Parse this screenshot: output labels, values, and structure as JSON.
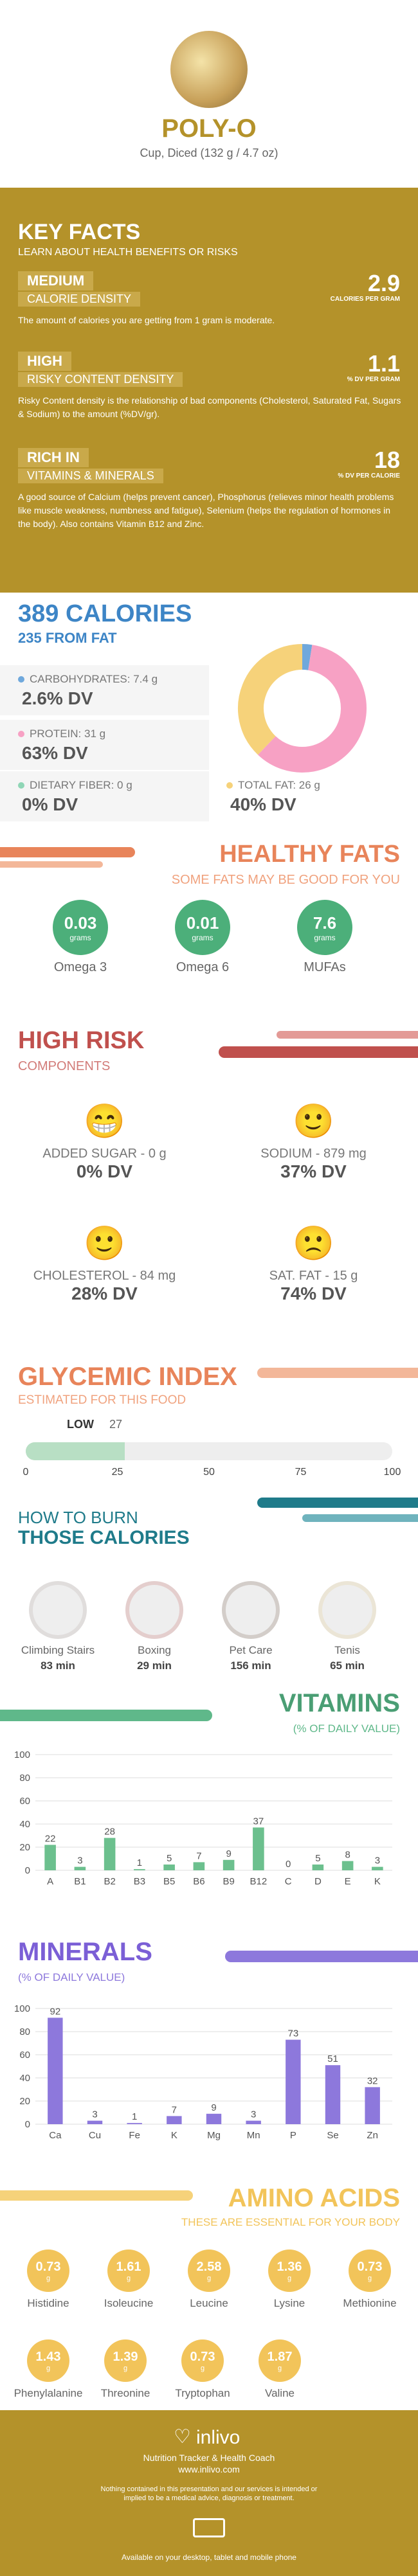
{
  "header": {
    "title": "POLY-O",
    "subtitle": "Cup, Diced (132 g / 4.7 oz)"
  },
  "key_facts": {
    "title": "KEY FACTS",
    "subtitle": "LEARN ABOUT HEALTH BENEFITS OR RISKS",
    "items": [
      {
        "label1": "MEDIUM",
        "label2": "CALORIE DENSITY",
        "value": "2.9",
        "unit": "CALORIES PER GRAM",
        "text": "The amount of calories you are getting from 1 gram is moderate."
      },
      {
        "label1": "HIGH",
        "label2": "RISKY CONTENT DENSITY",
        "value": "1.1",
        "unit": "% DV PER GRAM",
        "text": "Risky Content density is the relationship of bad components (Cholesterol, Saturated Fat, Sugars & Sodium) to the amount (%DV/gr)."
      },
      {
        "label1": "RICH IN",
        "label2": "VITAMINS & MINERALS",
        "value": "18",
        "unit": "% DV PER CALORIE",
        "text": "A good source of Calcium (helps prevent cancer), Phosphorus (relieves minor health problems like muscle weakness, numbness and fatigue), Selenium (helps the regulation of hormones in the body). Also contains Vitamin B12 and Zinc."
      }
    ]
  },
  "calories": {
    "title": "389 CALORIES",
    "fat": "235 FROM FAT",
    "macros": [
      {
        "label": "CARBOHYDRATES: 7.4 g",
        "dv": "2.6% DV",
        "color": "#6fa8dc",
        "pct": 2.6
      },
      {
        "label": "PROTEIN: 31 g",
        "dv": "63% DV",
        "color": "#f7a1c4",
        "pct": 63
      },
      {
        "label": "DIETARY FIBER: 0 g",
        "dv": "0% DV",
        "color": "#8fd6b6",
        "pct": 0
      },
      {
        "label": "TOTAL FAT: 26 g",
        "dv": "40% DV",
        "color": "#f6d27a",
        "pct": 40
      }
    ]
  },
  "healthy_fats": {
    "title": "HEALTHY FATS",
    "subtitle": "SOME FATS MAY BE GOOD FOR YOU",
    "items": [
      {
        "value": "0.03",
        "unit": "grams",
        "name": "Omega 3"
      },
      {
        "value": "0.01",
        "unit": "grams",
        "name": "Omega 6"
      },
      {
        "value": "7.6",
        "unit": "grams",
        "name": "MUFAs"
      }
    ]
  },
  "high_risk": {
    "title": "HIGH RISK",
    "subtitle": "COMPONENTS",
    "items": [
      {
        "label": "ADDED SUGAR - 0 g",
        "dv": "0% DV",
        "face": "😁"
      },
      {
        "label": "SODIUM - 879 mg",
        "dv": "37% DV",
        "face": "🙂"
      },
      {
        "label": "CHOLESTEROL - 84 mg",
        "dv": "28% DV",
        "face": "🙂"
      },
      {
        "label": "SAT. FAT - 15 g",
        "dv": "74% DV",
        "face": "🙁"
      }
    ]
  },
  "glycemic": {
    "title": "GLYCEMIC INDEX",
    "subtitle": "ESTIMATED FOR THIS FOOD",
    "level": "LOW",
    "value": "27",
    "gi": 27,
    "ticks": [
      "0",
      "25",
      "50",
      "75",
      "100"
    ]
  },
  "burn": {
    "title1": "HOW TO BURN",
    "title2": "THOSE CALORIES",
    "items": [
      {
        "name": "Climbing Stairs",
        "time": "83 min"
      },
      {
        "name": "Boxing",
        "time": "29 min"
      },
      {
        "name": "Pet Care",
        "time": "156 min"
      },
      {
        "name": "Tenis",
        "time": "65 min"
      }
    ]
  },
  "vitamins": {
    "title": "VITAMINS",
    "subtitle": "(% OF DAILY VALUE)"
  },
  "minerals": {
    "title": "MINERALS",
    "subtitle": "(% OF DAILY VALUE)"
  },
  "chart_data": [
    {
      "type": "bar",
      "categories": [
        "A",
        "B1",
        "B2",
        "B3",
        "B5",
        "B6",
        "B9",
        "B12",
        "C",
        "D",
        "E",
        "K"
      ],
      "values": [
        22,
        3,
        28,
        1,
        5,
        7,
        9,
        37,
        0,
        5,
        8,
        3
      ],
      "ylim": [
        0,
        100
      ],
      "ticks": [
        "0",
        "20",
        "40",
        "60",
        "80",
        "100"
      ]
    },
    {
      "type": "bar",
      "categories": [
        "Ca",
        "Cu",
        "Fe",
        "K",
        "Mg",
        "Mn",
        "P",
        "Se",
        "Zn"
      ],
      "values": [
        92,
        3,
        1,
        7,
        9,
        3,
        73,
        51,
        32
      ],
      "ylim": [
        0,
        100
      ],
      "ticks": [
        "0",
        "20",
        "40",
        "60",
        "80",
        "100"
      ]
    }
  ],
  "amino": {
    "title": "AMINO ACIDS",
    "subtitle": "THESE ARE ESSENTIAL FOR YOUR BODY",
    "items": [
      {
        "v": "0.73",
        "u": "g",
        "n": "Histidine"
      },
      {
        "v": "1.61",
        "u": "g",
        "n": "Isoleucine"
      },
      {
        "v": "2.58",
        "u": "g",
        "n": "Leucine"
      },
      {
        "v": "1.36",
        "u": "g",
        "n": "Lysine"
      },
      {
        "v": "0.73",
        "u": "g",
        "n": "Methionine"
      },
      {
        "v": "1.43",
        "u": "g",
        "n": "Phenylalanine"
      },
      {
        "v": "1.39",
        "u": "g",
        "n": "Threonine"
      },
      {
        "v": "0.73",
        "u": "g",
        "n": "Tryptophan"
      },
      {
        "v": "1.87",
        "u": "g",
        "n": "Valine"
      }
    ]
  },
  "footer": {
    "brand": "inlivo",
    "tag": "Nutrition Tracker & Health Coach",
    "url": "www.inlivo.com",
    "disclaimer": "Nothing contained in this presentation and our services is intended or implied to be a medical advice, diagnosis or treatment.",
    "available": "Available on your desktop, tablet and mobile phone"
  },
  "colors": {
    "gold": "#b4922a",
    "blue": "#3d85c6",
    "salmon": "#e8845a",
    "red": "#c0504d",
    "teal": "#1f7b8a",
    "green": "#5fb88a",
    "purple": "#7b5fd6"
  }
}
